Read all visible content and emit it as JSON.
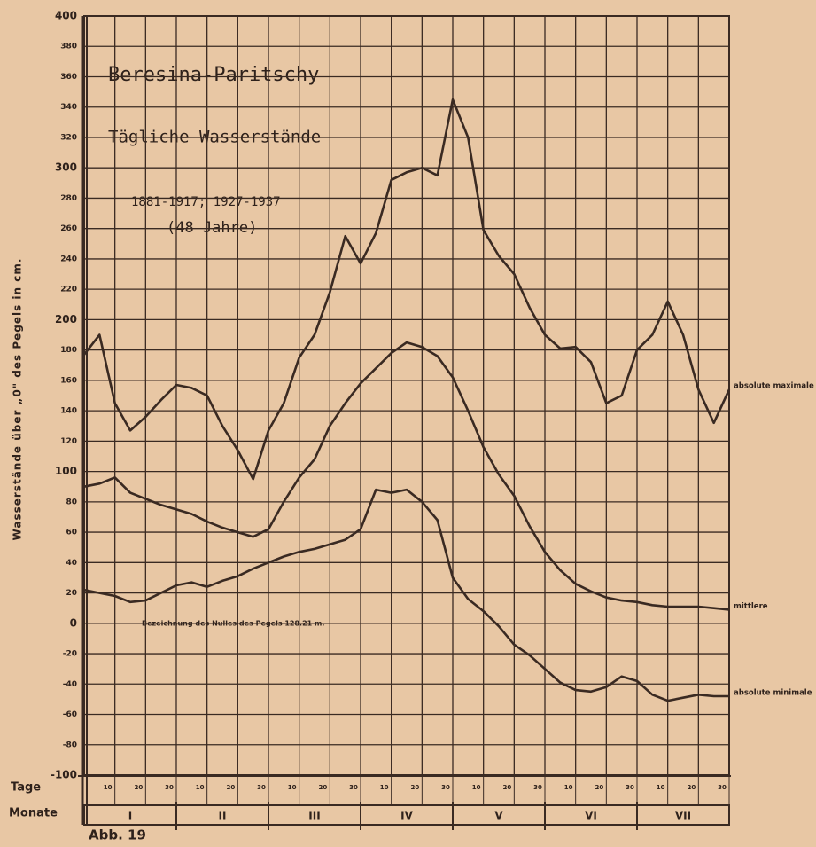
{
  "chart_data": {
    "type": "line",
    "title": "Beresina-Paritschy",
    "subtitle": "Tägliche Wasserstände",
    "years": "1881-1917; 1927-1937",
    "period": "(48 Jahre)",
    "y_label": "Wasserstände über „0\" des Pegels in cm.",
    "annotation": "Bezeichnung des Nulles des Pegels 128.21 m.",
    "x_label": "Tage",
    "month_label": "Monate",
    "months": [
      "I",
      "II",
      "III",
      "IV",
      "V",
      "VI",
      "VII"
    ],
    "figure_label": "Abb. 19",
    "grid": true,
    "xlim": [
      0,
      210
    ],
    "xticks": [
      10,
      20,
      30,
      {
        "value": 40,
        "label": "10"
      },
      {
        "value": 50,
        "label": "20"
      },
      {
        "value": 60,
        "label": "30"
      },
      {
        "value": 70,
        "label": "10"
      },
      {
        "value": 80,
        "label": "20"
      },
      {
        "value": 90,
        "label": "30"
      },
      {
        "value": 100,
        "label": "10"
      },
      {
        "value": 110,
        "label": "20"
      },
      {
        "value": 120,
        "label": "30"
      },
      {
        "value": 130,
        "label": "10"
      },
      {
        "value": 140,
        "label": "20"
      },
      {
        "value": 150,
        "label": "30"
      },
      {
        "value": 160,
        "label": "10"
      },
      {
        "value": 170,
        "label": "20"
      },
      {
        "value": 180,
        "label": "30"
      },
      {
        "value": 190,
        "label": "10"
      },
      {
        "value": 200,
        "label": "20"
      },
      {
        "value": 210,
        "label": "30"
      }
    ],
    "ylim": [
      -100,
      400
    ],
    "yticks": [
      -100,
      -80,
      -60,
      -40,
      -20,
      0,
      20,
      40,
      60,
      80,
      100,
      120,
      140,
      160,
      180,
      200,
      220,
      240,
      260,
      280,
      300,
      320,
      340,
      360,
      380,
      400
    ],
    "x": [
      0,
      5,
      10,
      15,
      20,
      25,
      30,
      35,
      40,
      45,
      50,
      55,
      60,
      65,
      70,
      75,
      80,
      85,
      90,
      95,
      100,
      105,
      110,
      115,
      120,
      125,
      130,
      135,
      140,
      145,
      150,
      155,
      160,
      165,
      170,
      175,
      180,
      185,
      190,
      195,
      200,
      205,
      210
    ],
    "series": [
      {
        "name": "absolute maximale",
        "color": "#3a2a22",
        "values": [
          177,
          190,
          145,
          127,
          136,
          147,
          157,
          155,
          150,
          130,
          114,
          95,
          127,
          145,
          175,
          190,
          218,
          255,
          237,
          257,
          292,
          297,
          300,
          295,
          345,
          320,
          259,
          242,
          230,
          208,
          190,
          181,
          182,
          172,
          145,
          150,
          180,
          190,
          212,
          190,
          154,
          132,
          154
        ]
      },
      {
        "name": "mittlere",
        "color": "#3a2a22",
        "values": [
          90,
          92,
          96,
          86,
          82,
          78,
          75,
          72,
          67,
          63,
          60,
          57,
          62,
          80,
          96,
          108,
          130,
          145,
          158,
          168,
          178,
          185,
          182,
          176,
          162,
          140,
          116,
          98,
          84,
          64,
          47,
          35,
          26,
          21,
          17,
          15,
          14,
          12,
          11,
          11,
          11,
          10,
          9
        ]
      },
      {
        "name": "absolute minimale",
        "color": "#3a2a22",
        "values": [
          22,
          20,
          18,
          14,
          15,
          20,
          25,
          27,
          24,
          28,
          31,
          36,
          40,
          44,
          47,
          49,
          52,
          55,
          62,
          88,
          86,
          88,
          80,
          68,
          30,
          16,
          8,
          -2,
          -14,
          -21,
          -30,
          -39,
          -44,
          -45,
          -42,
          -35,
          -38,
          -47,
          -51,
          -49,
          -47,
          -48,
          -48
        ]
      }
    ]
  }
}
